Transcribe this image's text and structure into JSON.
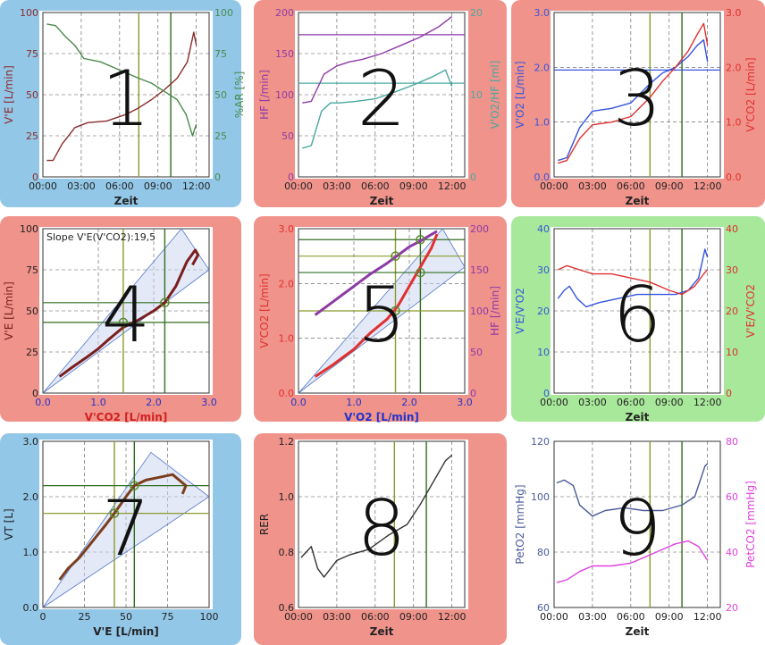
{
  "colors": {
    "blue_tile": "#93c7e8",
    "red_tile": "#f0938b",
    "green_tile": "#a8e89a",
    "white_tile": "#ffffff",
    "vt1_line": "#8b9a2e",
    "vt2_line": "#2f6e1f"
  },
  "chart_data": [
    {
      "id": 1,
      "type": "line",
      "tile": "blue",
      "annotation": "1",
      "xlabel": "Zeit",
      "ylabel": "V'E [L/min]",
      "ylabel_right": "%AR [%]",
      "xticks": [
        "00:00",
        "03:00",
        "06:00",
        "09:00",
        "12:00"
      ],
      "xlim": [
        0,
        13
      ],
      "ylim": [
        0,
        100
      ],
      "ylim_right": [
        0,
        100
      ],
      "yticks": [
        0,
        25,
        50,
        75,
        100
      ],
      "yticks_right": [
        0,
        25,
        50,
        75,
        100
      ],
      "vlines": [
        7.5,
        10
      ],
      "hlines_left": [],
      "series": [
        {
          "axis": "left",
          "color": "#8b2b2b",
          "x": [
            0.3,
            0.8,
            1.5,
            2.5,
            3.5,
            5.0,
            6.5,
            7.5,
            8.5,
            9.5,
            10.5,
            11.3,
            11.8,
            12.0
          ],
          "y": [
            10,
            10,
            20,
            30,
            33,
            34,
            38,
            42,
            47,
            53,
            60,
            70,
            88,
            80
          ]
        },
        {
          "axis": "right",
          "color": "#4a8a4a",
          "x": [
            0.3,
            1.0,
            1.8,
            2.5,
            3.2,
            4.5,
            6.0,
            7.5,
            8.5,
            9.5,
            10.5,
            11.2,
            11.7,
            12.0
          ],
          "y": [
            93,
            92,
            85,
            80,
            72,
            70,
            65,
            60,
            57,
            52,
            47,
            38,
            25,
            32
          ]
        }
      ]
    },
    {
      "id": 2,
      "type": "line",
      "tile": "red",
      "annotation": "2",
      "xlabel": "Zeit",
      "ylabel": "HF [/min]",
      "ylabel_right": "V'O2/HF [ml]",
      "xticks": [
        "00:00",
        "03:00",
        "06:00",
        "09:00",
        "12:00"
      ],
      "xlim": [
        0,
        13
      ],
      "ylim": [
        0,
        200
      ],
      "ylim_right": [
        0,
        20
      ],
      "yticks": [
        0,
        50,
        100,
        150,
        200
      ],
      "yticks_right": [
        0,
        10,
        20
      ],
      "vlines": [],
      "hlines_left": [
        {
          "y": 173,
          "color": "#8e3aa6"
        },
        {
          "y": 114,
          "color": "#48a8a0"
        }
      ],
      "series": [
        {
          "axis": "left",
          "color": "#8e3aa6",
          "x": [
            0.3,
            1.0,
            2.0,
            3.0,
            4.0,
            5.0,
            6.5,
            8.0,
            9.5,
            11.0,
            12.0
          ],
          "y": [
            90,
            92,
            125,
            135,
            140,
            143,
            150,
            160,
            170,
            183,
            195
          ]
        },
        {
          "axis": "right",
          "color": "#48a8a0",
          "x": [
            0.3,
            1.0,
            1.8,
            2.5,
            3.2,
            4.5,
            6.0,
            7.5,
            9.0,
            10.5,
            11.5,
            12.0
          ],
          "y": [
            3.5,
            3.8,
            8.0,
            9.0,
            9.0,
            9.2,
            9.5,
            10.3,
            11.2,
            12.2,
            13.0,
            11.0
          ]
        }
      ]
    },
    {
      "id": 3,
      "type": "line",
      "tile": "red",
      "annotation": "3",
      "xlabel": "Zeit",
      "ylabel": "V'O2 [L/min]",
      "ylabel_right": "V'CO2 [L/min]",
      "xticks": [
        "00:00",
        "03:00",
        "06:00",
        "09:00",
        "12:00"
      ],
      "xlim": [
        0,
        13
      ],
      "ylim": [
        0,
        3.0
      ],
      "ylim_right": [
        0,
        3.0
      ],
      "yticks": [
        "0.0",
        "1.0",
        "2.0",
        "3.0"
      ],
      "yticks_right": [
        "0.0",
        "1.0",
        "2.0",
        "3.0"
      ],
      "vlines": [
        7.5,
        10
      ],
      "hlines_left": [
        {
          "y": 1.95,
          "color": "#3355dd"
        }
      ],
      "series": [
        {
          "axis": "left",
          "color": "#3355dd",
          "x": [
            0.3,
            1.0,
            2.0,
            3.0,
            4.5,
            6.0,
            7.5,
            8.5,
            9.5,
            10.5,
            11.2,
            11.7,
            12.0
          ],
          "y": [
            0.3,
            0.35,
            0.9,
            1.2,
            1.25,
            1.35,
            1.7,
            1.9,
            2.0,
            2.2,
            2.4,
            2.5,
            2.1
          ]
        },
        {
          "axis": "right",
          "color": "#e03030",
          "x": [
            0.3,
            1.0,
            2.0,
            3.0,
            4.5,
            6.0,
            7.5,
            8.5,
            9.5,
            10.5,
            11.2,
            11.7,
            12.0
          ],
          "y": [
            0.25,
            0.3,
            0.7,
            0.95,
            1.0,
            1.1,
            1.45,
            1.75,
            2.0,
            2.3,
            2.6,
            2.8,
            2.4
          ]
        }
      ]
    },
    {
      "id": 4,
      "type": "scatter",
      "tile": "red",
      "annotation": "4",
      "xlabel": "V'CO2 [L/min]",
      "ylabel": "V'E [L/min]",
      "label": "Slope V'E(V'CO2):19,5",
      "xticks": [
        "0.0",
        "1.0",
        "2.0",
        "3.0"
      ],
      "xlim": [
        0,
        3.0
      ],
      "ylim": [
        0,
        100
      ],
      "yticks": [
        0,
        25,
        50,
        75,
        100
      ],
      "vlines": [
        1.45,
        2.2
      ],
      "hlines_left": [
        {
          "y": 43,
          "color": "#2f6e1f"
        },
        {
          "y": 55,
          "color": "#2f6e1f"
        }
      ],
      "markers": [
        {
          "x": 1.45,
          "y": 43
        },
        {
          "x": 2.2,
          "y": 55
        }
      ],
      "refline_slopes": [
        30,
        25,
        40
      ],
      "series": [
        {
          "axis": "left",
          "color": "#7a1e1e",
          "x": [
            0.3,
            0.5,
            0.8,
            1.0,
            1.2,
            1.45,
            1.7,
            2.0,
            2.2,
            2.4,
            2.6,
            2.75,
            2.8,
            2.7
          ],
          "y": [
            10,
            15,
            22,
            27,
            33,
            40,
            44,
            50,
            55,
            65,
            80,
            87,
            84,
            78
          ]
        }
      ]
    },
    {
      "id": 5,
      "type": "scatter",
      "tile": "red",
      "annotation": "5",
      "xlabel": "V'O2 [L/min]",
      "ylabel": "V'CO2 [L/min]",
      "ylabel_right": "HF [/min]",
      "xticks": [
        "0.0",
        "1.0",
        "2.0",
        "3.0"
      ],
      "xlim": [
        0,
        3.0
      ],
      "ylim": [
        0,
        3.0
      ],
      "ylim_right": [
        0,
        200
      ],
      "yticks": [
        "0.0",
        "1.0",
        "2.0",
        "3.0"
      ],
      "yticks_right": [
        0,
        50,
        100,
        150,
        200
      ],
      "vlines": [
        1.75,
        2.2
      ],
      "hlines_left": [
        {
          "y": 1.5,
          "color": "#8b9a2e"
        },
        {
          "y": 2.2,
          "color": "#2f6e1f"
        },
        {
          "y": 2.5,
          "color": "#8b9a2e"
        },
        {
          "y": 2.8,
          "color": "#2f6e1f"
        }
      ],
      "markers": [
        {
          "x": 1.75,
          "y": 1.5
        },
        {
          "x": 2.2,
          "y": 2.2
        },
        {
          "x": 1.75,
          "y": 2.5
        },
        {
          "x": 2.2,
          "y": 2.8
        }
      ],
      "series": [
        {
          "axis": "left",
          "color": "#e03030",
          "x": [
            0.3,
            0.6,
            1.0,
            1.3,
            1.6,
            1.8,
            2.0,
            2.2,
            2.4,
            2.5
          ],
          "y": [
            0.3,
            0.5,
            0.8,
            1.1,
            1.35,
            1.6,
            1.95,
            2.3,
            2.65,
            2.9
          ]
        },
        {
          "axis": "right",
          "color": "#8e3aa6",
          "x": [
            0.3,
            0.6,
            1.0,
            1.3,
            1.6,
            1.8,
            2.0,
            2.2,
            2.4,
            2.5
          ],
          "y": [
            95,
            110,
            130,
            145,
            158,
            168,
            178,
            185,
            193,
            197
          ]
        }
      ]
    },
    {
      "id": 6,
      "type": "line",
      "tile": "green",
      "annotation": "6",
      "xlabel": "Zeit",
      "ylabel": "V'E/V'O2",
      "ylabel_right": "V'E/V'CO2",
      "xticks": [
        "00:00",
        "03:00",
        "06:00",
        "09:00",
        "12:00"
      ],
      "xlim": [
        0,
        13
      ],
      "ylim": [
        0,
        40
      ],
      "ylim_right": [
        0,
        40
      ],
      "yticks": [
        0,
        10,
        20,
        30,
        40
      ],
      "yticks_right": [
        0,
        10,
        20,
        30,
        40
      ],
      "vlines": [
        7.5,
        10
      ],
      "hlines_left": [],
      "series": [
        {
          "axis": "left",
          "color": "#3355dd",
          "x": [
            0.3,
            0.8,
            1.2,
            1.8,
            2.5,
            3.5,
            5.0,
            6.5,
            8.0,
            9.5,
            10.5,
            11.3,
            11.8,
            12.0
          ],
          "y": [
            23,
            25,
            26,
            23,
            21,
            22,
            23,
            24,
            24,
            24,
            25,
            28,
            35,
            33
          ]
        },
        {
          "axis": "right",
          "color": "#e03030",
          "x": [
            0.3,
            1.0,
            2.0,
            3.0,
            4.5,
            6.0,
            7.5,
            9.0,
            10.0,
            11.0,
            11.7,
            12.0
          ],
          "y": [
            30,
            31,
            30,
            29,
            29,
            28,
            27,
            25,
            24,
            26,
            29,
            30
          ]
        }
      ]
    },
    {
      "id": 7,
      "type": "scatter",
      "tile": "blue",
      "annotation": "7",
      "xlabel": "V'E [L/min]",
      "ylabel": "VT [L]",
      "xticks": [
        0,
        25,
        50,
        75,
        100
      ],
      "xlim": [
        0,
        100
      ],
      "ylim": [
        0,
        3.0
      ],
      "yticks": [
        "0.0",
        "1.0",
        "2.0",
        "3.0"
      ],
      "vlines": [
        43,
        55
      ],
      "hlines_left": [
        {
          "y": 1.7,
          "color": "#8b9a2e"
        },
        {
          "y": 2.2,
          "color": "#2f6e1f"
        }
      ],
      "markers": [
        {
          "x": 43,
          "y": 1.7
        },
        {
          "x": 55,
          "y": 2.2
        }
      ],
      "series": [
        {
          "axis": "left",
          "color": "#7a3e1e",
          "x": [
            10,
            15,
            22,
            30,
            38,
            43,
            50,
            55,
            62,
            70,
            78,
            82,
            86,
            84
          ],
          "y": [
            0.5,
            0.7,
            0.9,
            1.2,
            1.5,
            1.7,
            2.0,
            2.2,
            2.3,
            2.35,
            2.4,
            2.3,
            2.2,
            2.05
          ]
        }
      ]
    },
    {
      "id": 8,
      "type": "line",
      "tile": "red",
      "annotation": "8",
      "xlabel": "Zeit",
      "ylabel": "RER",
      "xticks": [
        "00:00",
        "03:00",
        "06:00",
        "09:00",
        "12:00"
      ],
      "xlim": [
        0,
        13
      ],
      "ylim": [
        0.6,
        1.2
      ],
      "yticks": [
        "0.6",
        "0.8",
        "1.0",
        "1.2"
      ],
      "vlines": [
        7.5,
        10
      ],
      "hlines_left": [],
      "series": [
        {
          "axis": "left",
          "color": "#333333",
          "x": [
            0.2,
            0.6,
            1.0,
            1.5,
            2.0,
            3.0,
            4.0,
            5.5,
            7.0,
            8.5,
            9.5,
            10.5,
            11.5,
            12.0
          ],
          "y": [
            0.78,
            0.8,
            0.82,
            0.74,
            0.71,
            0.77,
            0.79,
            0.81,
            0.86,
            0.9,
            0.97,
            1.05,
            1.13,
            1.15
          ]
        }
      ]
    },
    {
      "id": 9,
      "type": "line",
      "tile": "white",
      "annotation": "9",
      "xlabel": "Zeit",
      "ylabel": "PetO2 [mmHg]",
      "ylabel_right": "PetCO2 [mmHg]",
      "xticks": [
        "00:00",
        "03:00",
        "06:00",
        "09:00",
        "12:00"
      ],
      "xlim": [
        0,
        13
      ],
      "ylim": [
        60,
        120
      ],
      "ylim_right": [
        20,
        80
      ],
      "yticks": [
        60,
        80,
        100,
        120
      ],
      "yticks_right": [
        20,
        40,
        60,
        80
      ],
      "vlines": [
        7.5,
        10
      ],
      "hlines_left": [],
      "series": [
        {
          "axis": "left",
          "color": "#4a5a9a",
          "x": [
            0.2,
            0.8,
            1.5,
            2.0,
            3.0,
            4.0,
            5.5,
            7.0,
            8.5,
            10.0,
            11.0,
            11.8,
            12.0
          ],
          "y": [
            105,
            106,
            104,
            97,
            93,
            95,
            96,
            95,
            95,
            97,
            100,
            111,
            112
          ]
        },
        {
          "axis": "right",
          "color": "#e040e0",
          "x": [
            0.2,
            1.0,
            2.0,
            3.0,
            4.5,
            6.0,
            7.5,
            8.5,
            9.5,
            10.5,
            11.3,
            12.0
          ],
          "y": [
            29,
            30,
            33,
            35,
            35,
            36,
            39,
            41,
            43,
            44,
            42,
            37
          ]
        }
      ]
    }
  ]
}
